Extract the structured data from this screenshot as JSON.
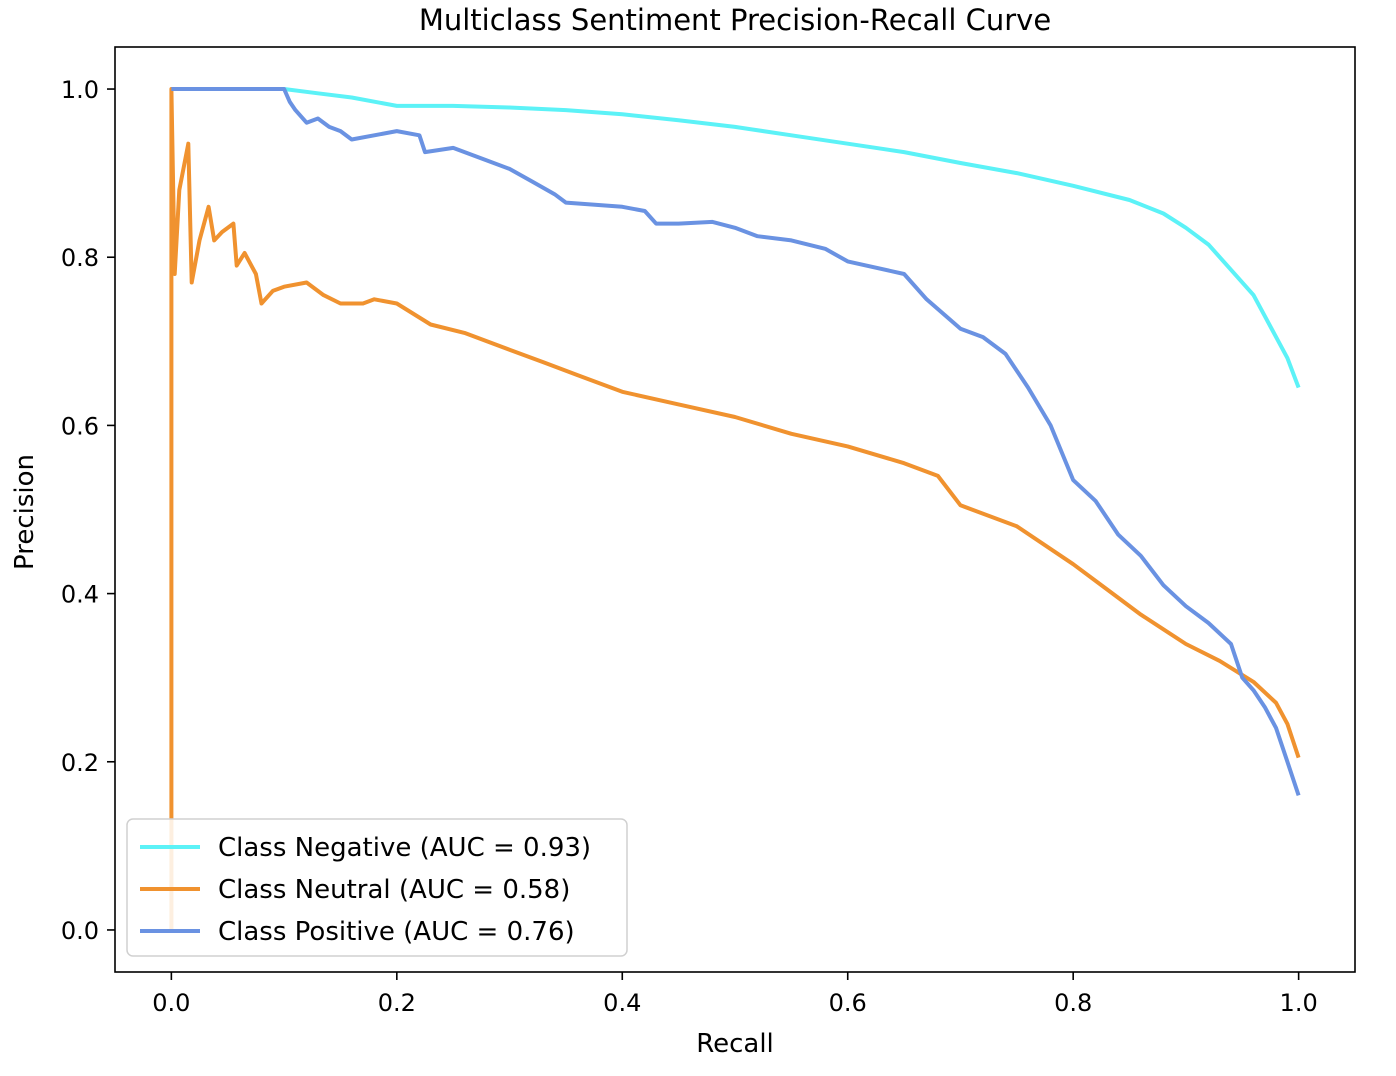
{
  "chart_data": {
    "type": "line",
    "title": "Multiclass Sentiment Precision-Recall Curve",
    "xlabel": "Recall",
    "ylabel": "Precision",
    "xlim": [
      -0.05,
      1.05
    ],
    "ylim": [
      -0.05,
      1.05
    ],
    "xticks": [
      0.0,
      0.2,
      0.4,
      0.6,
      0.8,
      1.0
    ],
    "xtick_labels": [
      "0.0",
      "0.2",
      "0.4",
      "0.6",
      "0.8",
      "1.0"
    ],
    "yticks": [
      0.0,
      0.2,
      0.4,
      0.6,
      0.8,
      1.0
    ],
    "ytick_labels": [
      "0.0",
      "0.2",
      "0.4",
      "0.6",
      "0.8",
      "1.0"
    ],
    "grid": false,
    "legend_position": "lower-left",
    "series": [
      {
        "name": "Class Negative (AUC = 0.93)",
        "color": "#5cf2f7",
        "points": [
          [
            0.0,
            1.0
          ],
          [
            0.1,
            1.0
          ],
          [
            0.13,
            0.995
          ],
          [
            0.16,
            0.99
          ],
          [
            0.2,
            0.98
          ],
          [
            0.25,
            0.98
          ],
          [
            0.3,
            0.978
          ],
          [
            0.35,
            0.975
          ],
          [
            0.4,
            0.97
          ],
          [
            0.45,
            0.963
          ],
          [
            0.5,
            0.955
          ],
          [
            0.55,
            0.945
          ],
          [
            0.6,
            0.935
          ],
          [
            0.65,
            0.925
          ],
          [
            0.7,
            0.912
          ],
          [
            0.75,
            0.9
          ],
          [
            0.8,
            0.885
          ],
          [
            0.85,
            0.868
          ],
          [
            0.88,
            0.852
          ],
          [
            0.9,
            0.835
          ],
          [
            0.92,
            0.815
          ],
          [
            0.94,
            0.785
          ],
          [
            0.96,
            0.755
          ],
          [
            0.97,
            0.73
          ],
          [
            0.98,
            0.705
          ],
          [
            0.99,
            0.68
          ],
          [
            1.0,
            0.645
          ]
        ]
      },
      {
        "name": "Class Neutral (AUC = 0.58)",
        "color": "#f0922f",
        "points": [
          [
            0.0,
            0.0
          ],
          [
            0.0,
            1.0
          ],
          [
            0.003,
            0.78
          ],
          [
            0.007,
            0.88
          ],
          [
            0.015,
            0.935
          ],
          [
            0.018,
            0.77
          ],
          [
            0.025,
            0.82
          ],
          [
            0.033,
            0.86
          ],
          [
            0.038,
            0.82
          ],
          [
            0.045,
            0.83
          ],
          [
            0.055,
            0.84
          ],
          [
            0.058,
            0.79
          ],
          [
            0.065,
            0.805
          ],
          [
            0.075,
            0.78
          ],
          [
            0.08,
            0.745
          ],
          [
            0.09,
            0.76
          ],
          [
            0.1,
            0.765
          ],
          [
            0.12,
            0.77
          ],
          [
            0.135,
            0.755
          ],
          [
            0.15,
            0.745
          ],
          [
            0.17,
            0.745
          ],
          [
            0.18,
            0.75
          ],
          [
            0.2,
            0.745
          ],
          [
            0.23,
            0.72
          ],
          [
            0.26,
            0.71
          ],
          [
            0.3,
            0.69
          ],
          [
            0.33,
            0.675
          ],
          [
            0.36,
            0.66
          ],
          [
            0.4,
            0.64
          ],
          [
            0.45,
            0.625
          ],
          [
            0.5,
            0.61
          ],
          [
            0.55,
            0.59
          ],
          [
            0.6,
            0.575
          ],
          [
            0.65,
            0.555
          ],
          [
            0.68,
            0.54
          ],
          [
            0.7,
            0.505
          ],
          [
            0.75,
            0.48
          ],
          [
            0.8,
            0.435
          ],
          [
            0.83,
            0.405
          ],
          [
            0.86,
            0.375
          ],
          [
            0.9,
            0.34
          ],
          [
            0.93,
            0.32
          ],
          [
            0.96,
            0.295
          ],
          [
            0.98,
            0.27
          ],
          [
            0.99,
            0.245
          ],
          [
            1.0,
            0.205
          ]
        ]
      },
      {
        "name": "Class Positive (AUC = 0.76)",
        "color": "#6a92e2",
        "points": [
          [
            0.0,
            1.0
          ],
          [
            0.1,
            1.0
          ],
          [
            0.105,
            0.985
          ],
          [
            0.11,
            0.975
          ],
          [
            0.12,
            0.96
          ],
          [
            0.13,
            0.965
          ],
          [
            0.14,
            0.955
          ],
          [
            0.15,
            0.95
          ],
          [
            0.16,
            0.94
          ],
          [
            0.2,
            0.95
          ],
          [
            0.22,
            0.945
          ],
          [
            0.225,
            0.925
          ],
          [
            0.25,
            0.93
          ],
          [
            0.28,
            0.915
          ],
          [
            0.3,
            0.905
          ],
          [
            0.32,
            0.89
          ],
          [
            0.34,
            0.875
          ],
          [
            0.35,
            0.865
          ],
          [
            0.4,
            0.86
          ],
          [
            0.42,
            0.855
          ],
          [
            0.43,
            0.84
          ],
          [
            0.45,
            0.84
          ],
          [
            0.48,
            0.842
          ],
          [
            0.5,
            0.835
          ],
          [
            0.52,
            0.825
          ],
          [
            0.55,
            0.82
          ],
          [
            0.58,
            0.81
          ],
          [
            0.6,
            0.795
          ],
          [
            0.65,
            0.78
          ],
          [
            0.67,
            0.75
          ],
          [
            0.7,
            0.715
          ],
          [
            0.72,
            0.705
          ],
          [
            0.74,
            0.685
          ],
          [
            0.76,
            0.645
          ],
          [
            0.78,
            0.6
          ],
          [
            0.8,
            0.535
          ],
          [
            0.82,
            0.51
          ],
          [
            0.84,
            0.47
          ],
          [
            0.86,
            0.445
          ],
          [
            0.88,
            0.41
          ],
          [
            0.9,
            0.385
          ],
          [
            0.92,
            0.365
          ],
          [
            0.94,
            0.34
          ],
          [
            0.95,
            0.3
          ],
          [
            0.96,
            0.285
          ],
          [
            0.97,
            0.265
          ],
          [
            0.98,
            0.24
          ],
          [
            0.99,
            0.2
          ],
          [
            1.0,
            0.16
          ]
        ]
      }
    ]
  }
}
